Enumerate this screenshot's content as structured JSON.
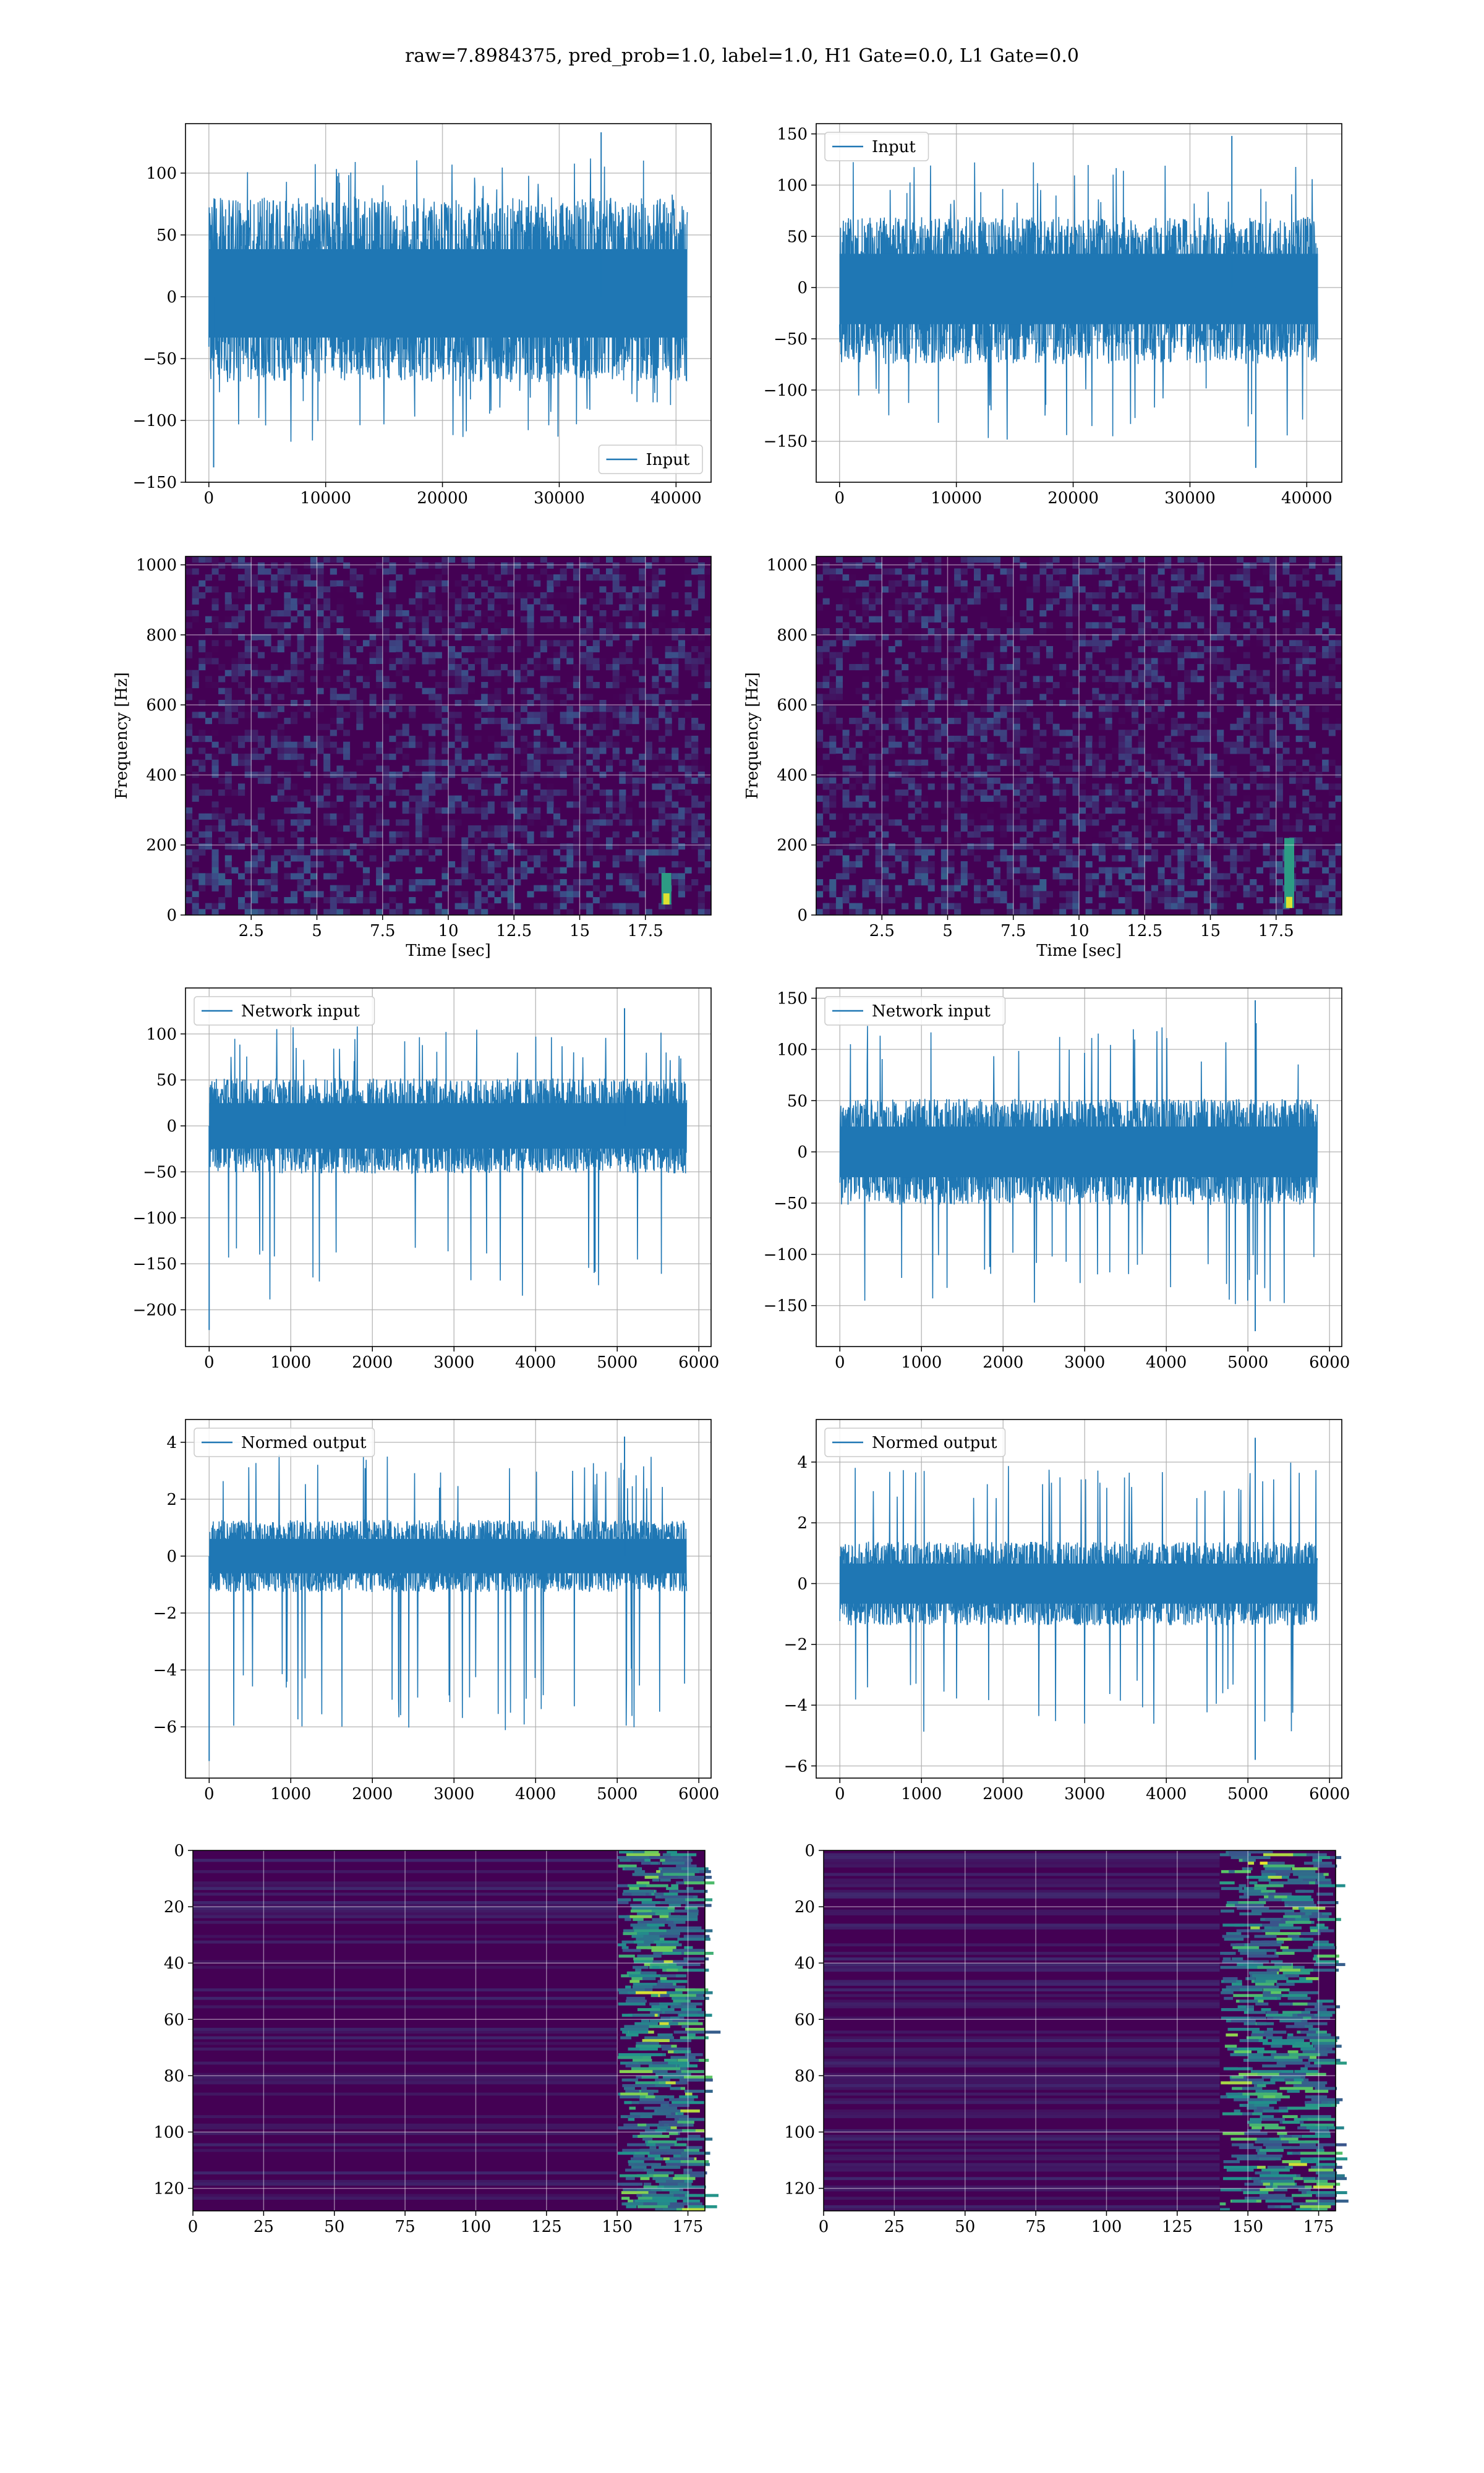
{
  "title": "raw=7.8984375, pred_prob=1.0, label=1.0, H1 Gate=0.0, L1 Gate=0.0",
  "colors": {
    "line": "#1f77b4",
    "grid": "#b0b0b0",
    "viridis_low": "#440154",
    "viridis_mid": "#21918c",
    "viridis_high": "#fde725"
  },
  "chart_data": [
    {
      "id": "h1-input",
      "type": "line",
      "series": [
        {
          "name": "Input",
          "summary": {
            "x_min": 0,
            "x_max": 40960,
            "typical_band": [
              -60,
              70
            ],
            "min": -138,
            "max": 133
          }
        }
      ],
      "xlim": [
        -2000,
        43000
      ],
      "ylim": [
        -150,
        140
      ],
      "xticks": [
        0,
        10000,
        20000,
        30000,
        40000
      ],
      "yticks": [
        -150,
        -100,
        -50,
        0,
        50,
        100
      ],
      "legend": "lower right",
      "grid": true,
      "xlabel": "",
      "ylabel": ""
    },
    {
      "id": "l1-input",
      "type": "line",
      "series": [
        {
          "name": "Input",
          "summary": {
            "x_min": 0,
            "x_max": 40960,
            "typical_band": [
              -65,
              60
            ],
            "min": -176,
            "max": 148
          }
        }
      ],
      "xlim": [
        -2000,
        43000
      ],
      "ylim": [
        -190,
        160
      ],
      "xticks": [
        0,
        10000,
        20000,
        30000,
        40000
      ],
      "yticks": [
        -150,
        -100,
        -50,
        0,
        50,
        100,
        150
      ],
      "legend": "upper left",
      "grid": true,
      "xlabel": "",
      "ylabel": ""
    },
    {
      "id": "h1-spectrogram",
      "type": "heatmap",
      "xlabel": "Time [sec]",
      "ylabel": "Frequency [Hz]",
      "xlim": [
        0,
        20
      ],
      "ylim": [
        0,
        1024
      ],
      "xticks": [
        2.5,
        5.0,
        7.5,
        10.0,
        12.5,
        15.0,
        17.5
      ],
      "yticks": [
        0,
        200,
        400,
        600,
        800,
        1000
      ],
      "hot_spots": [
        {
          "t": 18.3,
          "f_low": 30,
          "f_high": 120
        }
      ],
      "grid": true
    },
    {
      "id": "l1-spectrogram",
      "type": "heatmap",
      "xlabel": "Time [sec]",
      "ylabel": "Frequency [Hz]",
      "xlim": [
        0,
        20
      ],
      "ylim": [
        0,
        1024
      ],
      "xticks": [
        2.5,
        5.0,
        7.5,
        10.0,
        12.5,
        15.0,
        17.5
      ],
      "yticks": [
        0,
        200,
        400,
        600,
        800,
        1000
      ],
      "hot_spots": [
        {
          "t": 18.0,
          "f_low": 20,
          "f_high": 220
        }
      ],
      "grid": true
    },
    {
      "id": "h1-network-input",
      "type": "line",
      "series": [
        {
          "name": "Network input",
          "summary": {
            "x_min": 0,
            "x_max": 5850,
            "typical_band": [
              -45,
              45
            ],
            "min": -222,
            "max": 128
          }
        }
      ],
      "xlim": [
        -290,
        6150
      ],
      "ylim": [
        -240,
        150
      ],
      "xticks": [
        0,
        1000,
        2000,
        3000,
        4000,
        5000,
        6000
      ],
      "yticks": [
        -200,
        -150,
        -100,
        -50,
        0,
        50,
        100
      ],
      "legend": "upper left",
      "grid": true,
      "xlabel": "",
      "ylabel": ""
    },
    {
      "id": "l1-network-input",
      "type": "line",
      "series": [
        {
          "name": "Network input",
          "summary": {
            "x_min": 0,
            "x_max": 5850,
            "typical_band": [
              -45,
              45
            ],
            "min": -175,
            "max": 148
          }
        }
      ],
      "xlim": [
        -290,
        6150
      ],
      "ylim": [
        -190,
        160
      ],
      "xticks": [
        0,
        1000,
        2000,
        3000,
        4000,
        5000,
        6000
      ],
      "yticks": [
        -150,
        -100,
        -50,
        0,
        50,
        100,
        150
      ],
      "legend": "upper left",
      "grid": true,
      "xlabel": "",
      "ylabel": ""
    },
    {
      "id": "h1-normed-output",
      "type": "line",
      "series": [
        {
          "name": "Normed output",
          "summary": {
            "x_min": 0,
            "x_max": 5850,
            "typical_band": [
              -1.1,
              1.1
            ],
            "min": -7.2,
            "max": 4.2
          }
        }
      ],
      "xlim": [
        -290,
        6150
      ],
      "ylim": [
        -7.8,
        4.8
      ],
      "xticks": [
        0,
        1000,
        2000,
        3000,
        4000,
        5000,
        6000
      ],
      "yticks": [
        -6,
        -4,
        -2,
        0,
        2,
        4
      ],
      "legend": "upper left",
      "grid": true,
      "xlabel": "",
      "ylabel": ""
    },
    {
      "id": "l1-normed-output",
      "type": "line",
      "series": [
        {
          "name": "Normed output",
          "summary": {
            "x_min": 0,
            "x_max": 5850,
            "typical_band": [
              -1.2,
              1.2
            ],
            "min": -5.8,
            "max": 4.8
          }
        }
      ],
      "xlim": [
        -290,
        6150
      ],
      "ylim": [
        -6.4,
        5.4
      ],
      "xticks": [
        0,
        1000,
        2000,
        3000,
        4000,
        5000,
        6000
      ],
      "yticks": [
        -6,
        -4,
        -2,
        0,
        2,
        4
      ],
      "legend": "upper left",
      "grid": true,
      "xlabel": "",
      "ylabel": ""
    },
    {
      "id": "h1-feature-map",
      "type": "heatmap",
      "xlim": [
        0,
        181
      ],
      "ylim": [
        128,
        0
      ],
      "xticks": [
        0,
        25,
        50,
        75,
        100,
        125,
        150,
        175
      ],
      "yticks": [
        0,
        20,
        40,
        60,
        80,
        100,
        120
      ],
      "active_columns": [
        150,
        175
      ],
      "grid": true,
      "xlabel": "",
      "ylabel": ""
    },
    {
      "id": "l1-feature-map",
      "type": "heatmap",
      "xlim": [
        0,
        181
      ],
      "ylim": [
        128,
        0
      ],
      "xticks": [
        0,
        25,
        50,
        75,
        100,
        125,
        150,
        175
      ],
      "yticks": [
        0,
        20,
        40,
        60,
        80,
        100,
        120
      ],
      "active_columns": [
        140,
        175
      ],
      "grid": true,
      "xlabel": "",
      "ylabel": ""
    }
  ]
}
